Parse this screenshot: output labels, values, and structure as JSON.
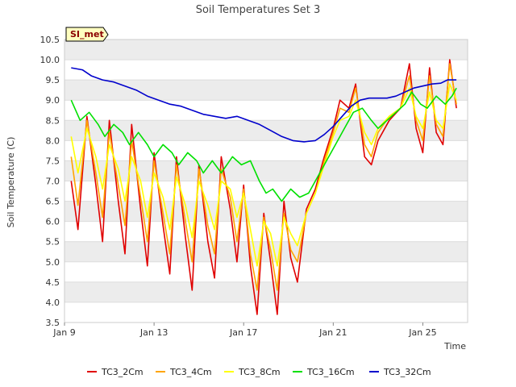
{
  "chart_data": {
    "type": "line",
    "title": "Soil Temperatures Set 3",
    "xlabel": "Time",
    "ylabel": "Soil Temperature (C)",
    "station_badge": "SI_met",
    "ylim": [
      3.5,
      10.5
    ],
    "xlim_days": [
      0,
      18
    ],
    "y_ticks": [
      "3.5",
      "4.0",
      "4.5",
      "5.0",
      "5.5",
      "6.0",
      "6.5",
      "7.0",
      "7.5",
      "8.0",
      "8.5",
      "9.0",
      "9.5",
      "10.0",
      "10.5"
    ],
    "x_ticks": [
      {
        "label": "Jan 9",
        "day": 0
      },
      {
        "label": "Jan 13",
        "day": 4
      },
      {
        "label": "Jan 17",
        "day": 8
      },
      {
        "label": "Jan 21",
        "day": 12
      },
      {
        "label": "Jan 25",
        "day": 16
      }
    ],
    "colors": {
      "TC3_2Cm": "#e00000",
      "TC3_4Cm": "#ffa500",
      "TC3_8Cm": "#ffff00",
      "TC3_16Cm": "#00e000",
      "TC3_32Cm": "#0000cc"
    },
    "series": [
      {
        "name": "TC3_2Cm",
        "points": [
          [
            0.3,
            7.0
          ],
          [
            0.6,
            5.8
          ],
          [
            1.0,
            8.6
          ],
          [
            1.4,
            6.9
          ],
          [
            1.7,
            5.5
          ],
          [
            2.0,
            8.5
          ],
          [
            2.4,
            6.5
          ],
          [
            2.7,
            5.2
          ],
          [
            3.0,
            8.4
          ],
          [
            3.4,
            6.3
          ],
          [
            3.7,
            4.9
          ],
          [
            4.0,
            7.7
          ],
          [
            4.4,
            5.9
          ],
          [
            4.7,
            4.7
          ],
          [
            5.0,
            7.6
          ],
          [
            5.4,
            5.6
          ],
          [
            5.7,
            4.3
          ],
          [
            6.0,
            7.4
          ],
          [
            6.4,
            5.5
          ],
          [
            6.7,
            4.6
          ],
          [
            7.0,
            7.6
          ],
          [
            7.4,
            6.3
          ],
          [
            7.7,
            5.0
          ],
          [
            8.0,
            6.9
          ],
          [
            8.3,
            4.9
          ],
          [
            8.6,
            3.7
          ],
          [
            8.9,
            6.2
          ],
          [
            9.2,
            5.0
          ],
          [
            9.5,
            3.7
          ],
          [
            9.8,
            6.5
          ],
          [
            10.1,
            5.1
          ],
          [
            10.4,
            4.5
          ],
          [
            10.8,
            6.3
          ],
          [
            11.2,
            6.8
          ],
          [
            11.6,
            7.6
          ],
          [
            12.0,
            8.3
          ],
          [
            12.3,
            9.0
          ],
          [
            12.7,
            8.8
          ],
          [
            13.0,
            9.4
          ],
          [
            13.4,
            7.6
          ],
          [
            13.7,
            7.4
          ],
          [
            14.0,
            8.0
          ],
          [
            14.5,
            8.5
          ],
          [
            15.0,
            8.8
          ],
          [
            15.4,
            9.9
          ],
          [
            15.7,
            8.3
          ],
          [
            16.0,
            7.7
          ],
          [
            16.3,
            9.8
          ],
          [
            16.6,
            8.2
          ],
          [
            16.9,
            7.9
          ],
          [
            17.2,
            10.0
          ],
          [
            17.5,
            8.8
          ]
        ]
      },
      {
        "name": "TC3_4Cm",
        "points": [
          [
            0.3,
            7.6
          ],
          [
            0.6,
            6.4
          ],
          [
            1.0,
            8.5
          ],
          [
            1.4,
            7.2
          ],
          [
            1.7,
            6.1
          ],
          [
            2.0,
            8.2
          ],
          [
            2.4,
            6.9
          ],
          [
            2.7,
            5.9
          ],
          [
            3.0,
            8.0
          ],
          [
            3.4,
            6.6
          ],
          [
            3.7,
            5.5
          ],
          [
            4.0,
            7.5
          ],
          [
            4.4,
            6.2
          ],
          [
            4.7,
            5.2
          ],
          [
            5.0,
            7.4
          ],
          [
            5.4,
            6.0
          ],
          [
            5.7,
            5.0
          ],
          [
            6.0,
            7.3
          ],
          [
            6.4,
            5.9
          ],
          [
            6.7,
            5.2
          ],
          [
            7.0,
            7.3
          ],
          [
            7.4,
            6.6
          ],
          [
            7.7,
            5.5
          ],
          [
            8.0,
            6.8
          ],
          [
            8.3,
            5.2
          ],
          [
            8.6,
            4.3
          ],
          [
            8.9,
            6.1
          ],
          [
            9.2,
            5.3
          ],
          [
            9.5,
            4.3
          ],
          [
            9.8,
            6.2
          ],
          [
            10.1,
            5.3
          ],
          [
            10.4,
            5.0
          ],
          [
            10.8,
            6.2
          ],
          [
            11.2,
            6.7
          ],
          [
            11.6,
            7.5
          ],
          [
            12.0,
            8.2
          ],
          [
            12.3,
            8.8
          ],
          [
            12.7,
            8.7
          ],
          [
            13.0,
            9.3
          ],
          [
            13.4,
            7.9
          ],
          [
            13.7,
            7.6
          ],
          [
            14.0,
            8.2
          ],
          [
            14.5,
            8.6
          ],
          [
            15.0,
            8.8
          ],
          [
            15.4,
            9.6
          ],
          [
            15.7,
            8.5
          ],
          [
            16.0,
            8.0
          ],
          [
            16.3,
            9.6
          ],
          [
            16.6,
            8.4
          ],
          [
            16.9,
            8.1
          ],
          [
            17.2,
            9.9
          ],
          [
            17.5,
            8.9
          ]
        ]
      },
      {
        "name": "TC3_8Cm",
        "points": [
          [
            0.3,
            8.1
          ],
          [
            0.6,
            7.2
          ],
          [
            1.0,
            8.3
          ],
          [
            1.4,
            7.6
          ],
          [
            1.7,
            6.8
          ],
          [
            2.0,
            7.9
          ],
          [
            2.4,
            7.3
          ],
          [
            2.7,
            6.5
          ],
          [
            3.0,
            7.6
          ],
          [
            3.4,
            7.0
          ],
          [
            3.7,
            6.1
          ],
          [
            4.0,
            7.2
          ],
          [
            4.4,
            6.6
          ],
          [
            4.7,
            5.8
          ],
          [
            5.0,
            7.1
          ],
          [
            5.4,
            6.4
          ],
          [
            5.7,
            5.6
          ],
          [
            6.0,
            7.0
          ],
          [
            6.4,
            6.4
          ],
          [
            6.7,
            5.8
          ],
          [
            7.0,
            7.0
          ],
          [
            7.4,
            6.8
          ],
          [
            7.7,
            6.1
          ],
          [
            8.0,
            6.7
          ],
          [
            8.3,
            5.8
          ],
          [
            8.6,
            4.9
          ],
          [
            8.9,
            6.0
          ],
          [
            9.2,
            5.7
          ],
          [
            9.5,
            4.9
          ],
          [
            9.8,
            6.1
          ],
          [
            10.1,
            5.7
          ],
          [
            10.4,
            5.4
          ],
          [
            10.8,
            6.2
          ],
          [
            11.2,
            6.7
          ],
          [
            11.6,
            7.4
          ],
          [
            12.0,
            8.1
          ],
          [
            12.3,
            8.5
          ],
          [
            12.7,
            8.6
          ],
          [
            13.0,
            9.0
          ],
          [
            13.4,
            8.2
          ],
          [
            13.7,
            7.9
          ],
          [
            14.0,
            8.3
          ],
          [
            14.5,
            8.6
          ],
          [
            15.0,
            8.8
          ],
          [
            15.4,
            9.3
          ],
          [
            15.7,
            8.6
          ],
          [
            16.0,
            8.3
          ],
          [
            16.3,
            9.2
          ],
          [
            16.6,
            8.5
          ],
          [
            16.9,
            8.3
          ],
          [
            17.2,
            9.4
          ],
          [
            17.5,
            9.0
          ]
        ]
      },
      {
        "name": "TC3_16Cm",
        "points": [
          [
            0.3,
            9.0
          ],
          [
            0.7,
            8.5
          ],
          [
            1.1,
            8.7
          ],
          [
            1.5,
            8.4
          ],
          [
            1.8,
            8.1
          ],
          [
            2.2,
            8.4
          ],
          [
            2.6,
            8.2
          ],
          [
            2.9,
            7.9
          ],
          [
            3.3,
            8.2
          ],
          [
            3.7,
            7.9
          ],
          [
            4.0,
            7.6
          ],
          [
            4.4,
            7.9
          ],
          [
            4.8,
            7.7
          ],
          [
            5.1,
            7.4
          ],
          [
            5.5,
            7.7
          ],
          [
            5.9,
            7.5
          ],
          [
            6.2,
            7.2
          ],
          [
            6.6,
            7.5
          ],
          [
            7.0,
            7.2
          ],
          [
            7.5,
            7.6
          ],
          [
            7.9,
            7.4
          ],
          [
            8.3,
            7.5
          ],
          [
            8.7,
            7.0
          ],
          [
            9.0,
            6.7
          ],
          [
            9.3,
            6.8
          ],
          [
            9.7,
            6.5
          ],
          [
            10.1,
            6.8
          ],
          [
            10.5,
            6.6
          ],
          [
            10.9,
            6.7
          ],
          [
            11.3,
            7.1
          ],
          [
            11.7,
            7.5
          ],
          [
            12.1,
            7.9
          ],
          [
            12.5,
            8.3
          ],
          [
            12.9,
            8.7
          ],
          [
            13.3,
            8.8
          ],
          [
            13.7,
            8.5
          ],
          [
            14.0,
            8.3
          ],
          [
            14.4,
            8.5
          ],
          [
            14.8,
            8.7
          ],
          [
            15.2,
            8.9
          ],
          [
            15.5,
            9.2
          ],
          [
            15.9,
            8.9
          ],
          [
            16.2,
            8.8
          ],
          [
            16.6,
            9.1
          ],
          [
            17.0,
            8.9
          ],
          [
            17.3,
            9.1
          ],
          [
            17.5,
            9.3
          ]
        ]
      },
      {
        "name": "TC3_32Cm",
        "points": [
          [
            0.3,
            9.8
          ],
          [
            0.8,
            9.75
          ],
          [
            1.2,
            9.6
          ],
          [
            1.7,
            9.5
          ],
          [
            2.2,
            9.45
          ],
          [
            2.7,
            9.35
          ],
          [
            3.2,
            9.25
          ],
          [
            3.7,
            9.1
          ],
          [
            4.2,
            9.0
          ],
          [
            4.7,
            8.9
          ],
          [
            5.2,
            8.85
          ],
          [
            5.7,
            8.75
          ],
          [
            6.2,
            8.65
          ],
          [
            6.7,
            8.6
          ],
          [
            7.2,
            8.55
          ],
          [
            7.7,
            8.6
          ],
          [
            8.2,
            8.5
          ],
          [
            8.7,
            8.4
          ],
          [
            9.2,
            8.25
          ],
          [
            9.7,
            8.1
          ],
          [
            10.2,
            8.0
          ],
          [
            10.7,
            7.97
          ],
          [
            11.2,
            8.0
          ],
          [
            11.6,
            8.15
          ],
          [
            12.0,
            8.35
          ],
          [
            12.4,
            8.6
          ],
          [
            12.8,
            8.85
          ],
          [
            13.2,
            9.0
          ],
          [
            13.6,
            9.05
          ],
          [
            14.0,
            9.05
          ],
          [
            14.4,
            9.05
          ],
          [
            14.8,
            9.1
          ],
          [
            15.2,
            9.2
          ],
          [
            15.6,
            9.3
          ],
          [
            16.0,
            9.35
          ],
          [
            16.4,
            9.4
          ],
          [
            16.8,
            9.42
          ],
          [
            17.1,
            9.5
          ],
          [
            17.5,
            9.5
          ]
        ]
      }
    ],
    "legend_position": "bottom"
  }
}
